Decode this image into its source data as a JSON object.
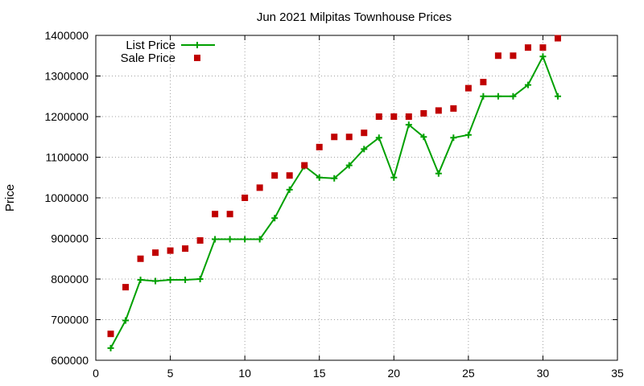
{
  "chart_data": {
    "type": "line",
    "title": "Jun 2021 Milpitas Townhouse Prices",
    "xlabel": "",
    "ylabel": "Price",
    "xlim": [
      0,
      35
    ],
    "ylim": [
      600000,
      1400000
    ],
    "xticks": [
      0,
      5,
      10,
      15,
      20,
      25,
      30,
      35
    ],
    "yticks": [
      600000,
      700000,
      800000,
      900000,
      1000000,
      1100000,
      1200000,
      1300000,
      1400000
    ],
    "grid": true,
    "legend_position": "top-left",
    "x": [
      1,
      2,
      3,
      4,
      5,
      6,
      7,
      8,
      9,
      10,
      11,
      12,
      13,
      14,
      15,
      16,
      17,
      18,
      19,
      20,
      21,
      22,
      23,
      24,
      25,
      26,
      27,
      28,
      29,
      30,
      31
    ],
    "series": [
      {
        "name": "List Price",
        "style": "line-with-plus-markers",
        "color": "#00a000",
        "values": [
          630000,
          698000,
          798000,
          795000,
          798000,
          798000,
          800000,
          898000,
          898000,
          898000,
          898000,
          950000,
          1020000,
          1078000,
          1050000,
          1048000,
          1080000,
          1120000,
          1148000,
          1050000,
          1180000,
          1150000,
          1060000,
          1148000,
          1155000,
          1250000,
          1250000,
          1250000,
          1278000,
          1348000,
          1250000
        ]
      },
      {
        "name": "Sale Price",
        "style": "square-markers",
        "color": "#c00000",
        "values": [
          665000,
          780000,
          850000,
          865000,
          870000,
          875000,
          895000,
          960000,
          960000,
          1000000,
          1025000,
          1055000,
          1055000,
          1080000,
          1125000,
          1150000,
          1150000,
          1160000,
          1200000,
          1200000,
          1200000,
          1208000,
          1215000,
          1220000,
          1270000,
          1285000,
          1350000,
          1350000,
          1370000,
          1370000,
          1393000
        ]
      }
    ]
  }
}
